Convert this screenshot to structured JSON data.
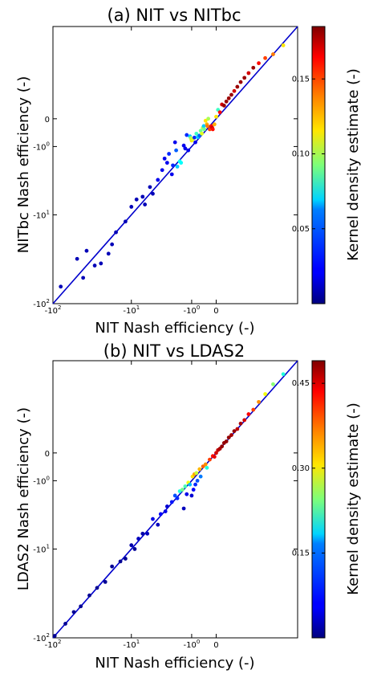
{
  "figure": {
    "panel_a": {
      "title": "(a) NIT vs NITbc",
      "xlabel": "NIT Nash efficiency (-)",
      "ylabel": "NITbc Nash efficiency (-)",
      "colorbar_label": "Kernel density estimate (-)"
    },
    "panel_b": {
      "title": "(b) NIT vs LDAS2",
      "xlabel": "NIT Nash efficiency (-)",
      "ylabel": "LDAS2 Nash efficiency (-)",
      "colorbar_label": "Kernel density estimate (-)"
    }
  },
  "chart_data": [
    {
      "type": "scatter",
      "title": "(a) NIT vs NITbc",
      "xlabel": "NIT Nash efficiency (-)",
      "ylabel": "NITbc Nash efficiency (-)",
      "axis_scale": "transformed 1 - log10(1 - E)",
      "xlim": [
        -100,
        0.9
      ],
      "ylim": [
        -100,
        0.9
      ],
      "x_ticks": [
        "-10^2",
        "-10^1",
        "-10^0",
        "0"
      ],
      "y_ticks": [
        "0",
        "-10^0",
        "-10^1",
        "-10^2"
      ],
      "one_to_one_line": true,
      "colorbar": {
        "label": "Kernel density estimate (-)",
        "ticks": [
          "0.05",
          "0.10",
          "0.15"
        ],
        "vmin": 0.0,
        "vmax": 0.185,
        "colormap": "jet"
      },
      "points": [
        {
          "x": -80,
          "y": -65,
          "c": 0.01
        },
        {
          "x": -50,
          "y": -32,
          "c": 0.01
        },
        {
          "x": -42,
          "y": -52,
          "c": 0.01
        },
        {
          "x": -38,
          "y": -26,
          "c": 0.01
        },
        {
          "x": -30,
          "y": -38,
          "c": 0.01
        },
        {
          "x": -25,
          "y": -36,
          "c": 0.01
        },
        {
          "x": -20,
          "y": -28,
          "c": 0.01
        },
        {
          "x": -18,
          "y": -22,
          "c": 0.01
        },
        {
          "x": -16,
          "y": -16,
          "c": 0.01
        },
        {
          "x": -12,
          "y": -12,
          "c": 0.01
        },
        {
          "x": -10,
          "y": -8,
          "c": 0.01
        },
        {
          "x": -8.5,
          "y": -6.5,
          "c": 0.01
        },
        {
          "x": -7,
          "y": -6,
          "c": 0.01
        },
        {
          "x": -6.5,
          "y": -7.5,
          "c": 0.01
        },
        {
          "x": -5.5,
          "y": -4.5,
          "c": 0.01
        },
        {
          "x": -5,
          "y": -5.5,
          "c": 0.01
        },
        {
          "x": -4.2,
          "y": -3.6,
          "c": 0.02
        },
        {
          "x": -3.6,
          "y": -2.6,
          "c": 0.02
        },
        {
          "x": -3.3,
          "y": -1.7,
          "c": 0.02
        },
        {
          "x": -3.0,
          "y": -2.0,
          "c": 0.02
        },
        {
          "x": -2.8,
          "y": -1.4,
          "c": 0.03
        },
        {
          "x": -2.5,
          "y": -3.0,
          "c": 0.02
        },
        {
          "x": -2.4,
          "y": -2.2,
          "c": 0.03
        },
        {
          "x": -2.2,
          "y": -0.8,
          "c": 0.02
        },
        {
          "x": -2.1,
          "y": -1.2,
          "c": 0.04
        },
        {
          "x": -2.0,
          "y": -2.3,
          "c": 0.06
        },
        {
          "x": -1.8,
          "y": -1.9,
          "c": 0.07
        },
        {
          "x": -1.7,
          "y": -2.0,
          "c": 0.07
        },
        {
          "x": -1.5,
          "y": -0.95,
          "c": 0.02
        },
        {
          "x": -1.4,
          "y": -1.1,
          "c": 0.02
        },
        {
          "x": -1.3,
          "y": -0.5,
          "c": 0.03
        },
        {
          "x": -1.2,
          "y": -1.2,
          "c": 0.02
        },
        {
          "x": -1.1,
          "y": -0.55,
          "c": 0.06
        },
        {
          "x": -1.05,
          "y": -0.62,
          "c": 0.1
        },
        {
          "x": -1.0,
          "y": -0.72,
          "c": 0.12
        },
        {
          "x": -0.95,
          "y": -0.68,
          "c": 0.11
        },
        {
          "x": -0.85,
          "y": -0.6,
          "c": 0.03
        },
        {
          "x": -0.8,
          "y": -0.8,
          "c": 0.02
        },
        {
          "x": -0.75,
          "y": -0.45,
          "c": 0.08
        },
        {
          "x": -0.68,
          "y": -0.58,
          "c": 0.06
        },
        {
          "x": -0.6,
          "y": -0.52,
          "c": 0.04
        },
        {
          "x": -0.55,
          "y": -0.35,
          "c": 0.09
        },
        {
          "x": -0.5,
          "y": -0.45,
          "c": 0.11
        },
        {
          "x": -0.46,
          "y": -0.25,
          "c": 0.1
        },
        {
          "x": -0.42,
          "y": -0.2,
          "c": 0.06
        },
        {
          "x": -0.4,
          "y": -0.3,
          "c": 0.09
        },
        {
          "x": -0.35,
          "y": -0.05,
          "c": 0.12
        },
        {
          "x": -0.3,
          "y": -0.15,
          "c": 0.13
        },
        {
          "x": -0.28,
          "y": -0.2,
          "c": 0.14
        },
        {
          "x": -0.25,
          "y": 0.0,
          "c": 0.1
        },
        {
          "x": -0.2,
          "y": -0.3,
          "c": 0.15
        },
        {
          "x": -0.15,
          "y": -0.2,
          "c": 0.16
        },
        {
          "x": -0.12,
          "y": -0.25,
          "c": 0.17
        },
        {
          "x": -0.1,
          "y": -0.3,
          "c": 0.16
        },
        {
          "x": -0.05,
          "y": -0.15,
          "c": 0.13
        },
        {
          "x": 0.0,
          "y": 0.05,
          "c": 0.12
        },
        {
          "x": 0.05,
          "y": 0.2,
          "c": 0.08
        },
        {
          "x": 0.1,
          "y": 0.15,
          "c": 0.16
        },
        {
          "x": 0.15,
          "y": 0.3,
          "c": 0.17
        },
        {
          "x": 0.2,
          "y": 0.28,
          "c": 0.18
        },
        {
          "x": 0.25,
          "y": 0.35,
          "c": 0.18
        },
        {
          "x": 0.3,
          "y": 0.4,
          "c": 0.18
        },
        {
          "x": 0.35,
          "y": 0.45,
          "c": 0.18
        },
        {
          "x": 0.4,
          "y": 0.5,
          "c": 0.17
        },
        {
          "x": 0.45,
          "y": 0.55,
          "c": 0.18
        },
        {
          "x": 0.5,
          "y": 0.6,
          "c": 0.18
        },
        {
          "x": 0.55,
          "y": 0.64,
          "c": 0.18
        },
        {
          "x": 0.6,
          "y": 0.68,
          "c": 0.17
        },
        {
          "x": 0.65,
          "y": 0.72,
          "c": 0.18
        },
        {
          "x": 0.7,
          "y": 0.75,
          "c": 0.16
        },
        {
          "x": 0.75,
          "y": 0.78,
          "c": 0.15
        },
        {
          "x": 0.8,
          "y": 0.8,
          "c": 0.14
        },
        {
          "x": 0.85,
          "y": 0.84,
          "c": 0.12
        }
      ]
    },
    {
      "type": "scatter",
      "title": "(b) NIT vs LDAS2",
      "xlabel": "NIT Nash efficiency (-)",
      "ylabel": "LDAS2 Nash efficiency (-)",
      "axis_scale": "transformed 1 - log10(1 - E)",
      "xlim": [
        -100,
        0.9
      ],
      "ylim": [
        -100,
        0.9
      ],
      "x_ticks": [
        "-10^2",
        "-10^1",
        "-10^0",
        "0"
      ],
      "y_ticks": [
        "0",
        "-10^0",
        "-10^1",
        "-10^2"
      ],
      "one_to_one_line": true,
      "colorbar": {
        "label": "Kernel density estimate (-)",
        "ticks": [
          "0.15",
          "0.30",
          "0.45"
        ],
        "vmin": 0.0,
        "vmax": 0.49,
        "colormap": "jet"
      },
      "points": [
        {
          "x": -95,
          "y": -95,
          "c": 0.01
        },
        {
          "x": -70,
          "y": -70,
          "c": 0.01
        },
        {
          "x": -55,
          "y": -52,
          "c": 0.01
        },
        {
          "x": -45,
          "y": -45,
          "c": 0.01
        },
        {
          "x": -35,
          "y": -34,
          "c": 0.01
        },
        {
          "x": -28,
          "y": -28,
          "c": 0.01
        },
        {
          "x": -22,
          "y": -24,
          "c": 0.01
        },
        {
          "x": -18,
          "y": -16,
          "c": 0.01
        },
        {
          "x": -14,
          "y": -14,
          "c": 0.01
        },
        {
          "x": -12,
          "y": -13,
          "c": 0.01
        },
        {
          "x": -10,
          "y": -9,
          "c": 0.02
        },
        {
          "x": -9,
          "y": -10,
          "c": 0.01
        },
        {
          "x": -8,
          "y": -7.5,
          "c": 0.03
        },
        {
          "x": -7,
          "y": -6.5,
          "c": 0.02
        },
        {
          "x": -6,
          "y": -6.5,
          "c": 0.03
        },
        {
          "x": -5,
          "y": -4.2,
          "c": 0.05
        },
        {
          "x": -4.2,
          "y": -5.0,
          "c": 0.03
        },
        {
          "x": -3.8,
          "y": -3.6,
          "c": 0.06
        },
        {
          "x": -3.2,
          "y": -3.3,
          "c": 0.05
        },
        {
          "x": -3.0,
          "y": -2.8,
          "c": 0.04
        },
        {
          "x": -2.5,
          "y": -2.4,
          "c": 0.07
        },
        {
          "x": -2.2,
          "y": -1.9,
          "c": 0.1
        },
        {
          "x": -2.0,
          "y": -2.1,
          "c": 0.08
        },
        {
          "x": -1.8,
          "y": -1.6,
          "c": 0.2
        },
        {
          "x": -1.6,
          "y": -1.5,
          "c": 0.24
        },
        {
          "x": -1.5,
          "y": -3.0,
          "c": 0.03
        },
        {
          "x": -1.4,
          "y": -1.3,
          "c": 0.22
        },
        {
          "x": -1.3,
          "y": -1.8,
          "c": 0.05
        },
        {
          "x": -1.2,
          "y": -1.1,
          "c": 0.3
        },
        {
          "x": -1.1,
          "y": -1.2,
          "c": 0.15
        },
        {
          "x": -1.0,
          "y": -1.9,
          "c": 0.04
        },
        {
          "x": -0.95,
          "y": -0.8,
          "c": 0.32
        },
        {
          "x": -0.9,
          "y": -1.5,
          "c": 0.06
        },
        {
          "x": -0.85,
          "y": -0.7,
          "c": 0.35
        },
        {
          "x": -0.8,
          "y": -1.2,
          "c": 0.08
        },
        {
          "x": -0.75,
          "y": -0.65,
          "c": 0.28
        },
        {
          "x": -0.7,
          "y": -1.0,
          "c": 0.1
        },
        {
          "x": -0.6,
          "y": -0.5,
          "c": 0.34
        },
        {
          "x": -0.55,
          "y": -0.8,
          "c": 0.12
        },
        {
          "x": -0.45,
          "y": -0.4,
          "c": 0.38
        },
        {
          "x": -0.35,
          "y": -0.33,
          "c": 0.36
        },
        {
          "x": -0.3,
          "y": -0.45,
          "c": 0.2
        },
        {
          "x": -0.2,
          "y": -0.18,
          "c": 0.4
        },
        {
          "x": -0.1,
          "y": -0.08,
          "c": 0.42
        },
        {
          "x": -0.05,
          "y": -0.1,
          "c": 0.44
        },
        {
          "x": 0.0,
          "y": 0.0,
          "c": 0.45
        },
        {
          "x": 0.05,
          "y": 0.07,
          "c": 0.46
        },
        {
          "x": 0.1,
          "y": 0.1,
          "c": 0.47
        },
        {
          "x": 0.15,
          "y": 0.15,
          "c": 0.48
        },
        {
          "x": 0.2,
          "y": 0.22,
          "c": 0.48
        },
        {
          "x": 0.25,
          "y": 0.25,
          "c": 0.48
        },
        {
          "x": 0.3,
          "y": 0.32,
          "c": 0.48
        },
        {
          "x": 0.35,
          "y": 0.36,
          "c": 0.47
        },
        {
          "x": 0.4,
          "y": 0.42,
          "c": 0.48
        },
        {
          "x": 0.45,
          "y": 0.45,
          "c": 0.46
        },
        {
          "x": 0.5,
          "y": 0.52,
          "c": 0.47
        },
        {
          "x": 0.55,
          "y": 0.56,
          "c": 0.45
        },
        {
          "x": 0.6,
          "y": 0.62,
          "c": 0.43
        },
        {
          "x": 0.65,
          "y": 0.66,
          "c": 0.4
        },
        {
          "x": 0.7,
          "y": 0.72,
          "c": 0.36
        },
        {
          "x": 0.75,
          "y": 0.77,
          "c": 0.3
        },
        {
          "x": 0.8,
          "y": 0.82,
          "c": 0.25
        },
        {
          "x": 0.85,
          "y": 0.86,
          "c": 0.2
        }
      ]
    }
  ]
}
